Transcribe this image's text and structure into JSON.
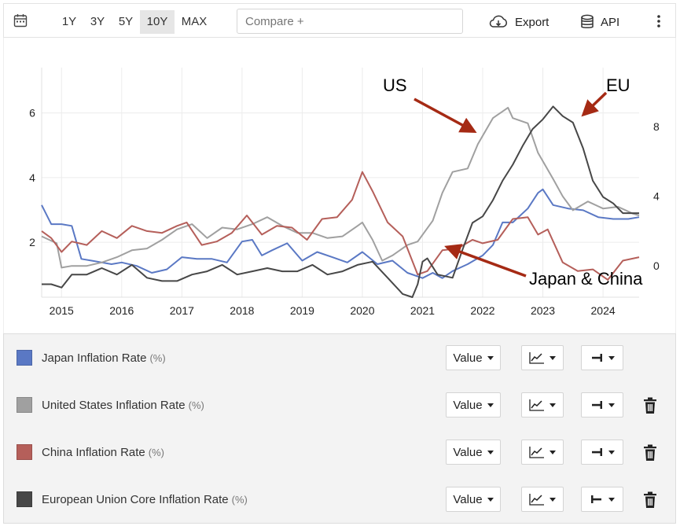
{
  "toolbar": {
    "ranges": [
      "1Y",
      "3Y",
      "5Y",
      "10Y",
      "MAX"
    ],
    "active_range": "10Y",
    "compare_placeholder": "Compare +",
    "export_label": "Export",
    "api_label": "API"
  },
  "legend": {
    "unit": "(%)",
    "value_label": "Value",
    "items": [
      {
        "name": "Japan Inflation Rate",
        "color": "#5a78c4",
        "axis": "right",
        "deletable": false
      },
      {
        "name": "United States Inflation Rate",
        "color": "#a0a0a0",
        "axis": "right",
        "deletable": true
      },
      {
        "name": "China Inflation Rate",
        "color": "#b55f5a",
        "axis": "right",
        "deletable": true
      },
      {
        "name": "European Union Core Inflation Rate",
        "color": "#474747",
        "axis": "left",
        "deletable": true
      }
    ]
  },
  "chart_data": {
    "type": "line",
    "x_ticks": [
      "2015",
      "2016",
      "2017",
      "2018",
      "2019",
      "2020",
      "2021",
      "2022",
      "2023",
      "2024"
    ],
    "xlim": [
      2014.67,
      2024.6
    ],
    "left_axis": {
      "ticks": [
        "2",
        "4",
        "6"
      ],
      "ylim": [
        0.3,
        7.4
      ]
    },
    "right_axis": {
      "ticks": [
        "0",
        "4",
        "8"
      ],
      "ylim": [
        -1.8,
        11.4
      ]
    },
    "grid": true,
    "annotations": [
      {
        "text": "US",
        "target_series": "United States Inflation Rate"
      },
      {
        "text": "EU",
        "target_series": "European Union Core Inflation Rate"
      },
      {
        "text": "Japan & China",
        "target_series": "Japan Inflation Rate"
      }
    ],
    "series": [
      {
        "name": "Japan Inflation Rate",
        "color": "#5a78c4",
        "axis": "right",
        "x": [
          2014.67,
          2014.83,
          2015.0,
          2015.17,
          2015.33,
          2015.5,
          2015.67,
          2015.83,
          2016.0,
          2016.25,
          2016.5,
          2016.75,
          2017.0,
          2017.25,
          2017.5,
          2017.75,
          2018.0,
          2018.17,
          2018.33,
          2018.5,
          2018.75,
          2019.0,
          2019.25,
          2019.5,
          2019.75,
          2020.0,
          2020.25,
          2020.5,
          2020.75,
          2021.0,
          2021.17,
          2021.33,
          2021.5,
          2021.75,
          2022.0,
          2022.17,
          2022.33,
          2022.5,
          2022.75,
          2022.92,
          2023.0,
          2023.17,
          2023.42,
          2023.67,
          2023.92,
          2024.17,
          2024.42,
          2024.6
        ],
        "y": [
          3.5,
          2.4,
          2.4,
          2.3,
          0.4,
          0.3,
          0.2,
          0.1,
          0.2,
          0,
          -0.4,
          -0.2,
          0.5,
          0.4,
          0.4,
          0.2,
          1.4,
          1.5,
          0.6,
          0.9,
          1.3,
          0.3,
          0.8,
          0.5,
          0.2,
          0.8,
          0.1,
          0.3,
          -0.4,
          -0.7,
          -0.4,
          -0.7,
          -0.3,
          0.1,
          0.6,
          1.2,
          2.5,
          2.5,
          3.3,
          4.2,
          4.4,
          3.5,
          3.3,
          3.2,
          2.8,
          2.7,
          2.7,
          2.8
        ]
      },
      {
        "name": "United States Inflation Rate",
        "color": "#a0a0a0",
        "axis": "right",
        "x": [
          2014.67,
          2014.92,
          2015.0,
          2015.17,
          2015.42,
          2015.67,
          2015.92,
          2016.17,
          2016.42,
          2016.67,
          2016.92,
          2017.17,
          2017.42,
          2017.67,
          2017.92,
          2018.17,
          2018.42,
          2018.67,
          2018.92,
          2019.17,
          2019.42,
          2019.67,
          2019.92,
          2020.0,
          2020.17,
          2020.33,
          2020.5,
          2020.75,
          2020.92,
          2021.17,
          2021.33,
          2021.5,
          2021.75,
          2021.92,
          2022.17,
          2022.42,
          2022.5,
          2022.75,
          2022.92,
          2023.17,
          2023.33,
          2023.5,
          2023.75,
          2024.0,
          2024.25,
          2024.5,
          2024.6
        ],
        "y": [
          1.7,
          1.3,
          -0.1,
          0,
          0,
          0.2,
          0.5,
          0.9,
          1.0,
          1.5,
          2.1,
          2.4,
          1.6,
          2.2,
          2.1,
          2.4,
          2.8,
          2.3,
          1.9,
          1.9,
          1.6,
          1.7,
          2.3,
          2.5,
          1.5,
          0.3,
          0.6,
          1.2,
          1.4,
          2.6,
          4.2,
          5.4,
          5.6,
          7.0,
          8.5,
          9.1,
          8.5,
          8.2,
          6.5,
          5.0,
          4.0,
          3.2,
          3.7,
          3.3,
          3.4,
          3.0,
          2.9
        ]
      },
      {
        "name": "China Inflation Rate",
        "color": "#b55f5a",
        "axis": "right",
        "x": [
          2014.67,
          2014.83,
          2015.0,
          2015.17,
          2015.42,
          2015.67,
          2015.92,
          2016.17,
          2016.42,
          2016.67,
          2016.92,
          2017.08,
          2017.33,
          2017.58,
          2017.83,
          2018.08,
          2018.33,
          2018.58,
          2018.83,
          2019.08,
          2019.33,
          2019.58,
          2019.83,
          2020.0,
          2020.17,
          2020.42,
          2020.67,
          2020.92,
          2021.08,
          2021.33,
          2021.58,
          2021.83,
          2022.0,
          2022.25,
          2022.5,
          2022.75,
          2022.92,
          2023.08,
          2023.33,
          2023.58,
          2023.83,
          2024.08,
          2024.33,
          2024.6
        ],
        "y": [
          2.0,
          1.6,
          0.8,
          1.4,
          1.2,
          2.0,
          1.6,
          2.3,
          2.0,
          1.9,
          2.3,
          2.5,
          1.2,
          1.4,
          1.9,
          2.9,
          1.8,
          2.3,
          2.2,
          1.5,
          2.7,
          2.8,
          3.8,
          5.4,
          4.3,
          2.5,
          1.7,
          -0.5,
          -0.3,
          0.9,
          1.0,
          1.5,
          1.3,
          1.5,
          2.7,
          2.8,
          1.8,
          2.1,
          0.2,
          -0.3,
          -0.2,
          -0.8,
          0.3,
          0.5
        ]
      },
      {
        "name": "European Union Core Inflation Rate",
        "color": "#474747",
        "axis": "left",
        "x": [
          2014.67,
          2014.83,
          2015.0,
          2015.17,
          2015.42,
          2015.67,
          2015.92,
          2016.17,
          2016.42,
          2016.67,
          2016.92,
          2017.17,
          2017.42,
          2017.67,
          2017.92,
          2018.17,
          2018.42,
          2018.67,
          2018.92,
          2019.17,
          2019.42,
          2019.67,
          2019.92,
          2020.17,
          2020.42,
          2020.67,
          2020.83,
          2020.92,
          2021.0,
          2021.08,
          2021.25,
          2021.5,
          2021.67,
          2021.83,
          2022.0,
          2022.17,
          2022.33,
          2022.5,
          2022.67,
          2022.83,
          2023.0,
          2023.17,
          2023.33,
          2023.5,
          2023.67,
          2023.83,
          2024.0,
          2024.17,
          2024.33,
          2024.6
        ],
        "y": [
          0.7,
          0.7,
          0.6,
          1.0,
          1.0,
          1.2,
          1.0,
          1.3,
          0.9,
          0.8,
          0.8,
          1.0,
          1.1,
          1.3,
          1.0,
          1.1,
          1.2,
          1.1,
          1.1,
          1.3,
          1.0,
          1.1,
          1.3,
          1.4,
          0.9,
          0.4,
          0.3,
          0.7,
          1.4,
          1.5,
          1.0,
          0.9,
          1.8,
          2.6,
          2.8,
          3.3,
          3.9,
          4.4,
          5.0,
          5.5,
          5.8,
          6.2,
          5.9,
          5.7,
          4.9,
          3.9,
          3.4,
          3.2,
          2.9,
          2.9
        ]
      }
    ]
  }
}
